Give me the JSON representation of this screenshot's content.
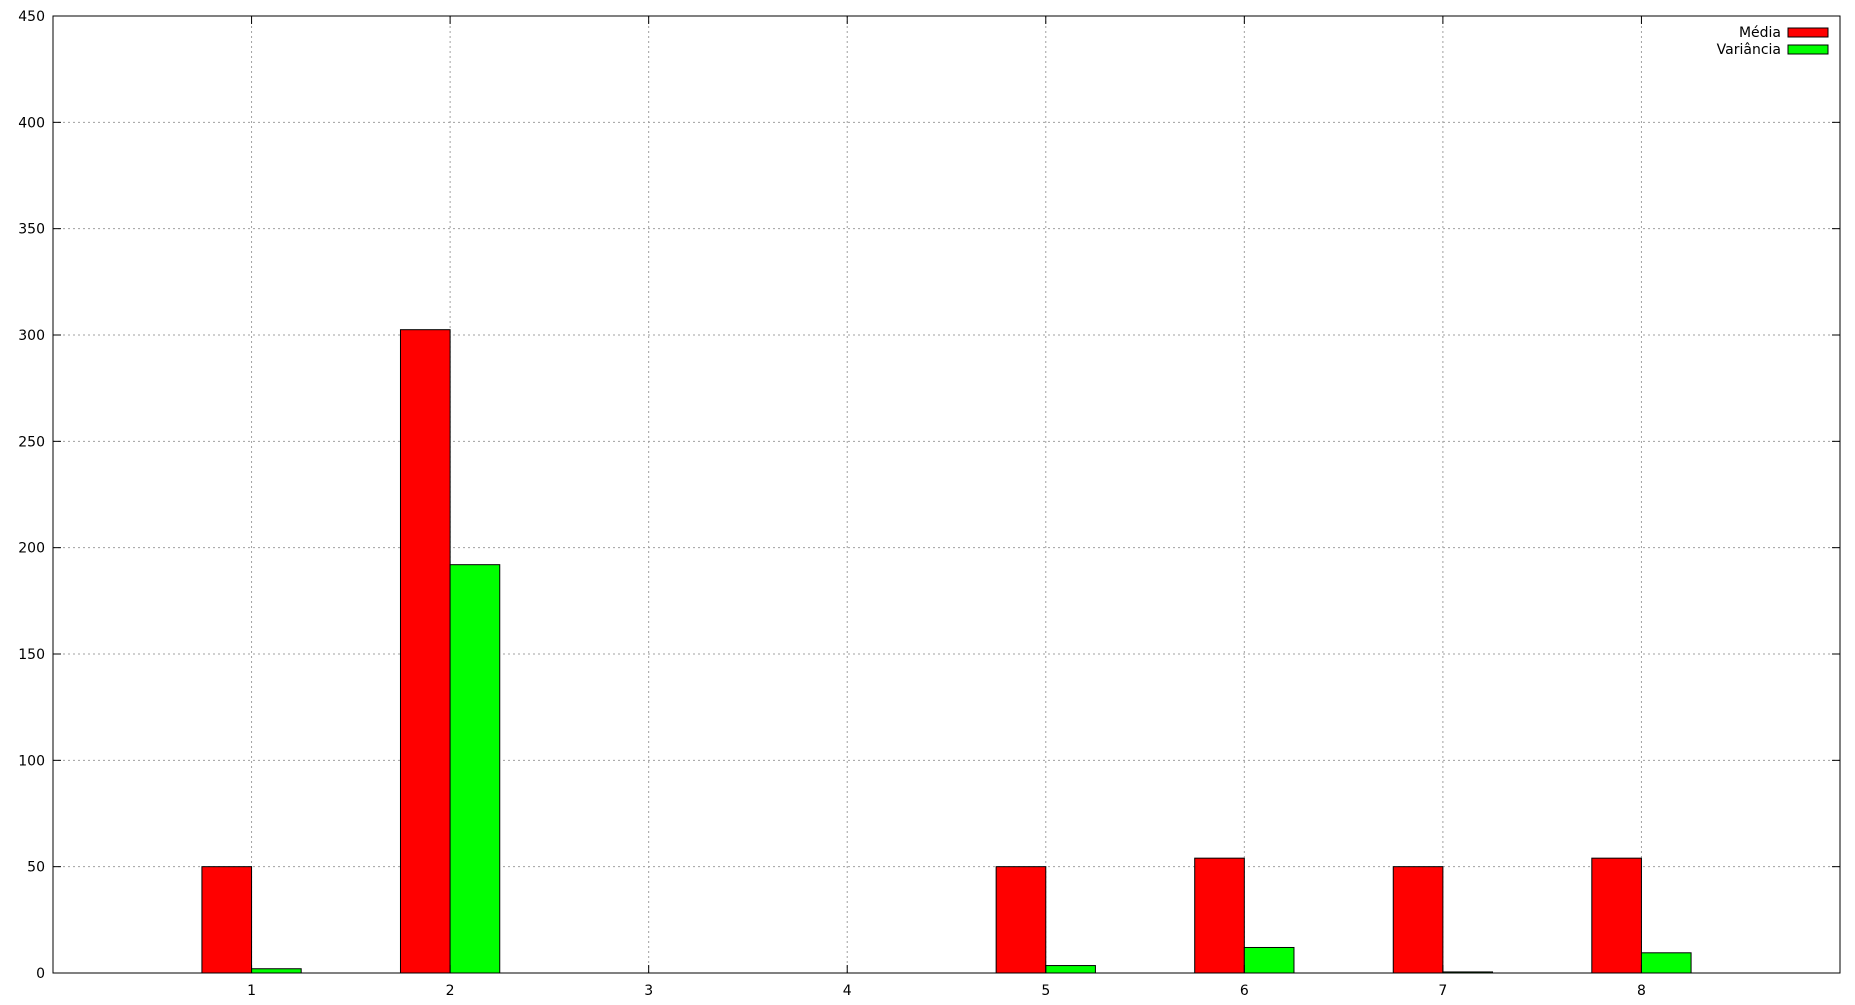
{
  "chart_data": {
    "type": "bar",
    "title": "",
    "xlabel": "",
    "ylabel": "",
    "categories": [
      "1",
      "2",
      "3",
      "4",
      "5",
      "6",
      "7",
      "8"
    ],
    "series": [
      {
        "name": "Média",
        "color": "#ff0000",
        "values": [
          50,
          302.5,
          0,
          0,
          50,
          54,
          50,
          54
        ]
      },
      {
        "name": "Variância",
        "color": "#00ff00",
        "values": [
          2,
          192,
          0,
          0,
          3.5,
          12,
          0.5,
          9.5
        ]
      }
    ],
    "ylim": [
      0,
      450
    ],
    "yticks": [
      0,
      50,
      100,
      150,
      200,
      250,
      300,
      350,
      400,
      450
    ],
    "grid": true,
    "legend_position": "top-right"
  }
}
